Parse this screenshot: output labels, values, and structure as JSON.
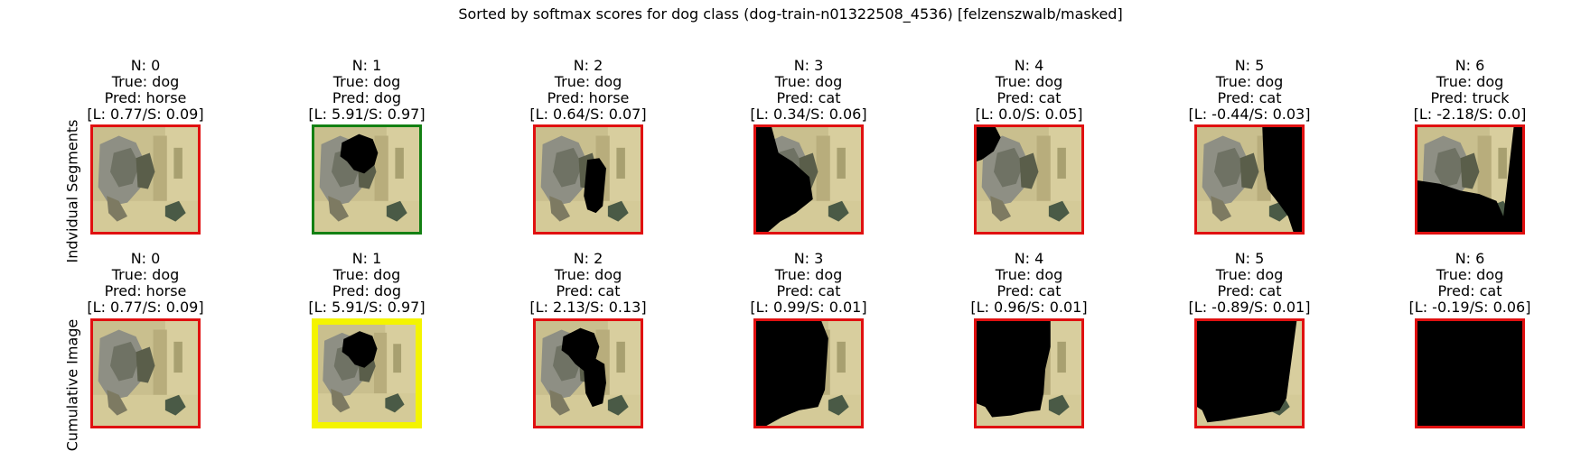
{
  "title": "Sorted by softmax scores for dog class (dog-train-n01322508_4536) [felzenszwalb/masked]",
  "colors": {
    "wrong": "#e01010",
    "correct": "#138013",
    "highlight": "#f4f400",
    "mask": "#000000"
  },
  "rows": [
    {
      "label": "Indvidual Segments",
      "panels": [
        {
          "n": "N: 0",
          "true": "True: dog",
          "pred": "Pred: horse",
          "scores": "[L: 0.77/S: 0.09]",
          "frame": "wrong",
          "mask": "none"
        },
        {
          "n": "N: 1",
          "true": "True: dog",
          "pred": "Pred: dog",
          "scores": "[L: 5.91/S: 0.97]",
          "frame": "correct",
          "mask": "head"
        },
        {
          "n": "N: 2",
          "true": "True: dog",
          "pred": "Pred: horse",
          "scores": "[L: 0.64/S: 0.07]",
          "frame": "wrong",
          "mask": "chest"
        },
        {
          "n": "N: 3",
          "true": "True: dog",
          "pred": "Pred: cat",
          "scores": "[L: 0.34/S: 0.06]",
          "frame": "wrong",
          "mask": "left"
        },
        {
          "n": "N: 4",
          "true": "True: dog",
          "pred": "Pred: cat",
          "scores": "[L: 0.0/S: 0.05]",
          "frame": "wrong",
          "mask": "upperleft"
        },
        {
          "n": "N: 5",
          "true": "True: dog",
          "pred": "Pred: cat",
          "scores": "[L: -0.44/S: 0.03]",
          "frame": "wrong",
          "mask": "right"
        },
        {
          "n": "N: 6",
          "true": "True: dog",
          "pred": "Pred: truck",
          "scores": "[L: -2.18/S: 0.0]",
          "frame": "wrong",
          "mask": "bottom"
        }
      ]
    },
    {
      "label": "Cumulative Image",
      "panels": [
        {
          "n": "N: 0",
          "true": "True: dog",
          "pred": "Pred: horse",
          "scores": "[L: 0.77/S: 0.09]",
          "frame": "wrong",
          "mask": "none"
        },
        {
          "n": "N: 1",
          "true": "True: dog",
          "pred": "Pred: dog",
          "scores": "[L: 5.91/S: 0.97]",
          "frame": "highlight",
          "mask": "head"
        },
        {
          "n": "N: 2",
          "true": "True: dog",
          "pred": "Pred: cat",
          "scores": "[L: 2.13/S: 0.13]",
          "frame": "wrong",
          "mask": "cum2"
        },
        {
          "n": "N: 3",
          "true": "True: dog",
          "pred": "Pred: cat",
          "scores": "[L: 0.99/S: 0.01]",
          "frame": "wrong",
          "mask": "cum3"
        },
        {
          "n": "N: 4",
          "true": "True: dog",
          "pred": "Pred: cat",
          "scores": "[L: 0.96/S: 0.01]",
          "frame": "wrong",
          "mask": "cum4"
        },
        {
          "n": "N: 5",
          "true": "True: dog",
          "pred": "Pred: cat",
          "scores": "[L: -0.89/S: 0.01]",
          "frame": "wrong",
          "mask": "cum5"
        },
        {
          "n": "N: 6",
          "true": "True: dog",
          "pred": "Pred: cat",
          "scores": "[L: -0.19/S: 0.06]",
          "frame": "wrong",
          "mask": "full"
        }
      ]
    }
  ]
}
